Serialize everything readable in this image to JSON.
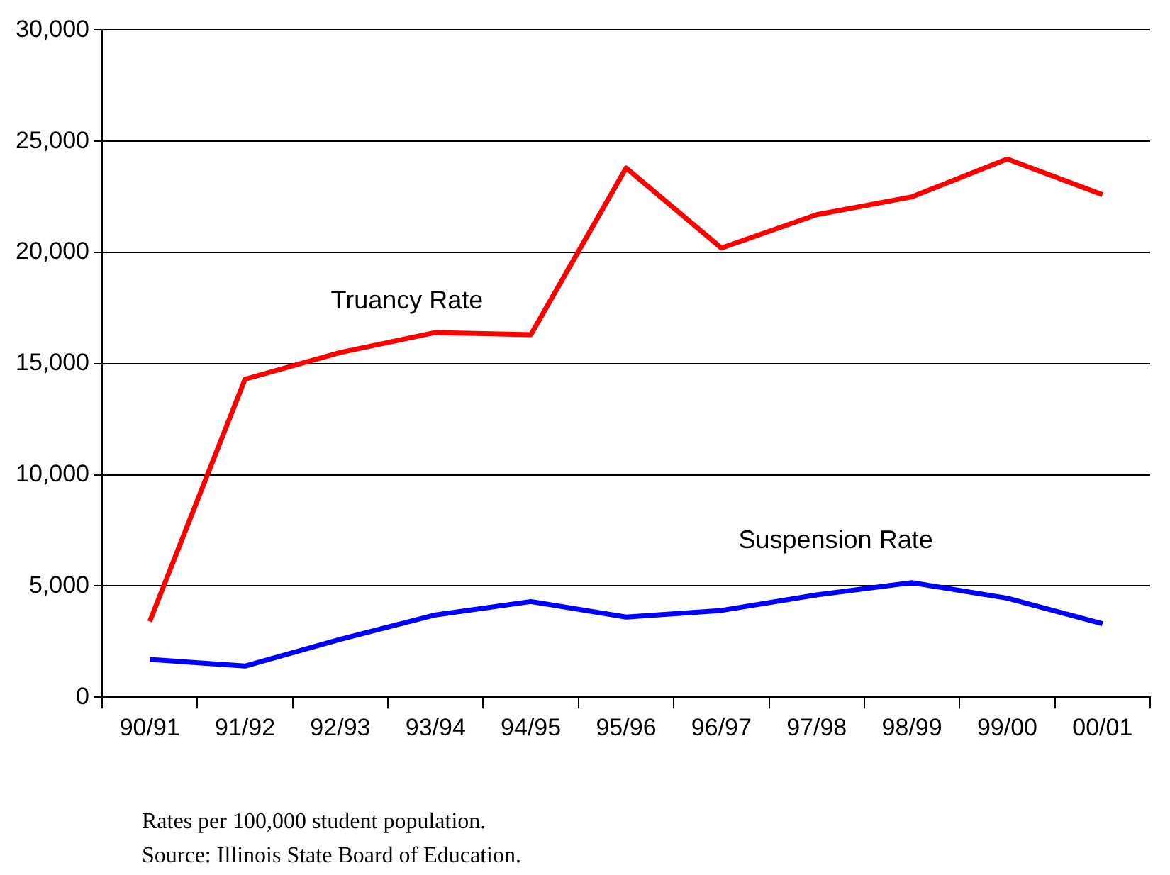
{
  "chart_data": {
    "type": "line",
    "categories": [
      "90/91",
      "91/92",
      "92/93",
      "93/94",
      "94/95",
      "95/96",
      "96/97",
      "97/98",
      "98/99",
      "99/00",
      "00/01"
    ],
    "series": [
      {
        "name": "Truancy Rate",
        "color": "#ff0000",
        "values": [
          3400,
          14300,
          15500,
          16400,
          16300,
          23800,
          20200,
          21700,
          22500,
          24200,
          22600
        ]
      },
      {
        "name": "Suspension Rate",
        "color": "#0000ff",
        "values": [
          1700,
          1400,
          2600,
          3700,
          4300,
          3600,
          3900,
          4600,
          5150,
          4450,
          3300
        ]
      }
    ],
    "ylim": [
      0,
      30000
    ],
    "yticks": [
      0,
      {
        "value": 5000,
        "label": "5,000"
      },
      {
        "value": 10000,
        "label": "10,000"
      },
      {
        "value": 15000,
        "label": "15,000"
      },
      {
        "value": 20000,
        "label": "20,000"
      },
      {
        "value": 25000,
        "label": "25,000"
      },
      {
        "value": 30000,
        "label": "30,000"
      }
    ],
    "grid": "y",
    "legend": false,
    "marker": "none",
    "line_style": "solid",
    "annotations": [
      "Rates per 100,000 student population.",
      "Source: Illinois State Board of Education."
    ]
  }
}
